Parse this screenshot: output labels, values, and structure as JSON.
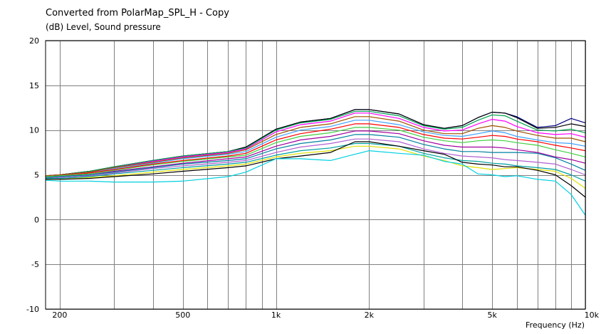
{
  "chart_data": {
    "type": "line",
    "title": "Converted from PolarMap_SPL_H - Copy",
    "ylabel": "(dB)  Level, Sound pressure",
    "xlabel": "Frequency  (Hz)",
    "x_scale": "log",
    "xlim": [
      180,
      10000
    ],
    "ylim": [
      -10,
      20
    ],
    "grid": true,
    "y_ticks": [
      20,
      15,
      10,
      5,
      0,
      -5,
      -10
    ],
    "x_tick_labels": [
      {
        "value": 200,
        "label": "200"
      },
      {
        "value": 500,
        "label": "500"
      },
      {
        "value": 1000,
        "label": "1k"
      },
      {
        "value": 2000,
        "label": "2k"
      },
      {
        "value": 5000,
        "label": "5k"
      },
      {
        "value": 10000,
        "label": "10k"
      }
    ],
    "x_minor_gridlines": [
      300,
      400,
      600,
      700,
      800,
      900,
      3000,
      4000,
      6000,
      7000,
      8000,
      9000
    ],
    "x": [
      180,
      200,
      250,
      300,
      400,
      500,
      700,
      800,
      1000,
      1200,
      1500,
      1800,
      2000,
      2500,
      3000,
      3500,
      4000,
      4500,
      5000,
      5500,
      6000,
      7000,
      8000,
      9000,
      10000
    ],
    "series": [
      {
        "color": "#000080",
        "values": [
          4.9,
          5.0,
          5.4,
          5.9,
          6.6,
          7.1,
          7.6,
          8.1,
          10.1,
          10.9,
          11.3,
          12.3,
          12.3,
          11.8,
          10.6,
          10.2,
          10.5,
          11.4,
          12.0,
          11.9,
          11.5,
          10.3,
          10.5,
          11.3,
          10.8
        ]
      },
      {
        "color": "#000000",
        "values": [
          4.9,
          5.0,
          5.4,
          5.9,
          6.6,
          7.1,
          7.6,
          8.1,
          10.1,
          10.9,
          11.3,
          12.3,
          12.3,
          11.8,
          10.6,
          10.2,
          10.5,
          11.4,
          12.0,
          11.9,
          11.4,
          10.2,
          10.3,
          10.7,
          10.4
        ]
      },
      {
        "color": "#00a050",
        "values": [
          4.9,
          5.0,
          5.4,
          5.9,
          6.6,
          7.1,
          7.6,
          8.0,
          10.0,
          10.8,
          11.2,
          12.1,
          12.1,
          11.6,
          10.5,
          10.1,
          10.3,
          11.1,
          11.7,
          11.6,
          11.0,
          10.0,
          9.9,
          10.1,
          9.7
        ]
      },
      {
        "color": "#ff00ff",
        "values": [
          4.9,
          5.0,
          5.3,
          5.8,
          6.5,
          7.0,
          7.5,
          7.9,
          9.8,
          10.6,
          11.0,
          11.9,
          11.9,
          11.3,
          10.3,
          9.9,
          10.0,
          10.7,
          11.2,
          11.0,
          10.4,
          9.7,
          9.5,
          9.6,
          9.2
        ]
      },
      {
        "color": "#a05000",
        "values": [
          4.9,
          5.0,
          5.3,
          5.8,
          6.4,
          6.9,
          7.4,
          7.8,
          9.5,
          10.3,
          10.7,
          11.5,
          11.5,
          11.0,
          10.0,
          9.6,
          9.6,
          10.2,
          10.5,
          10.3,
          9.9,
          9.4,
          9.1,
          9.1,
          8.7
        ]
      },
      {
        "color": "#40a0ff",
        "values": [
          4.8,
          4.9,
          5.2,
          5.7,
          6.3,
          6.8,
          7.3,
          7.6,
          9.2,
          10.0,
          10.4,
          11.1,
          11.1,
          10.6,
          9.8,
          9.4,
          9.3,
          9.6,
          9.9,
          9.7,
          9.3,
          8.9,
          8.6,
          8.5,
          8.2
        ]
      },
      {
        "color": "#ff0000",
        "values": [
          4.8,
          4.9,
          5.2,
          5.6,
          6.2,
          6.6,
          7.1,
          7.4,
          8.9,
          9.6,
          10.1,
          10.7,
          10.7,
          10.3,
          9.5,
          9.1,
          9.0,
          9.2,
          9.4,
          9.3,
          9.0,
          8.7,
          8.3,
          8.0,
          7.7
        ]
      },
      {
        "color": "#40d040",
        "values": [
          4.8,
          4.9,
          5.1,
          5.5,
          6.1,
          6.5,
          7.0,
          7.2,
          8.6,
          9.3,
          9.7,
          10.3,
          10.3,
          10.0,
          9.2,
          8.8,
          8.6,
          8.8,
          8.9,
          8.8,
          8.6,
          8.3,
          7.8,
          7.4,
          7.0
        ]
      },
      {
        "color": "#a000a0",
        "values": [
          4.7,
          4.8,
          5.0,
          5.4,
          5.9,
          6.3,
          6.8,
          7.0,
          8.2,
          8.9,
          9.3,
          9.9,
          9.9,
          9.6,
          8.8,
          8.3,
          8.1,
          8.1,
          8.1,
          8.0,
          7.8,
          7.5,
          7.0,
          6.7,
          6.3
        ]
      },
      {
        "color": "#0080a0",
        "values": [
          4.7,
          4.8,
          5.0,
          5.3,
          5.8,
          6.2,
          6.6,
          6.8,
          7.9,
          8.5,
          8.9,
          9.5,
          9.5,
          9.2,
          8.4,
          7.9,
          7.6,
          7.6,
          7.5,
          7.5,
          7.5,
          7.4,
          6.9,
          6.2,
          5.5
        ]
      },
      {
        "color": "#b060d0",
        "values": [
          4.6,
          4.7,
          4.9,
          5.2,
          5.7,
          6.0,
          6.4,
          6.6,
          7.5,
          8.1,
          8.5,
          9.0,
          9.0,
          8.7,
          7.9,
          7.4,
          7.1,
          7.0,
          6.9,
          6.7,
          6.6,
          6.4,
          6.2,
          5.6,
          5.0
        ]
      },
      {
        "color": "#00a0a0",
        "values": [
          4.6,
          4.6,
          4.8,
          5.1,
          5.5,
          5.8,
          6.2,
          6.4,
          7.2,
          7.7,
          8.0,
          8.5,
          8.5,
          8.2,
          7.4,
          6.9,
          6.6,
          6.5,
          6.3,
          6.2,
          6.0,
          5.8,
          5.6,
          5.0,
          4.3
        ]
      },
      {
        "color": "#e0e000",
        "values": [
          4.5,
          4.5,
          4.7,
          4.9,
          5.3,
          5.6,
          6.0,
          6.2,
          7.0,
          7.4,
          7.7,
          8.2,
          8.2,
          7.9,
          7.1,
          6.6,
          6.0,
          5.8,
          5.6,
          5.7,
          5.8,
          5.6,
          5.4,
          4.6,
          3.5
        ]
      },
      {
        "color": "#000000",
        "values": [
          4.5,
          4.5,
          4.6,
          4.8,
          5.1,
          5.4,
          5.8,
          6.0,
          6.8,
          7.1,
          7.5,
          8.7,
          8.7,
          8.2,
          7.7,
          7.3,
          6.4,
          6.2,
          6.1,
          5.9,
          5.9,
          5.5,
          5.0,
          3.8,
          2.5
        ]
      },
      {
        "color": "#00d0e0",
        "values": [
          4.4,
          4.3,
          4.3,
          4.2,
          4.2,
          4.3,
          4.8,
          5.3,
          6.8,
          6.8,
          6.6,
          7.3,
          7.7,
          7.4,
          7.2,
          6.5,
          6.2,
          5.1,
          5.0,
          4.8,
          4.9,
          4.5,
          4.3,
          2.8,
          0.5
        ]
      }
    ]
  }
}
